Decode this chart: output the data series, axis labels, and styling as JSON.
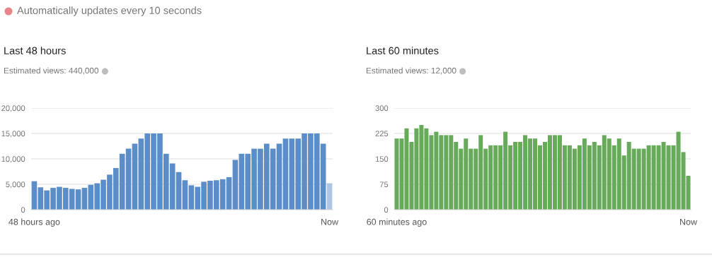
{
  "chart_data": [
    {
      "type": "bar",
      "title": "Last 48 hours",
      "subtitle": "Estimated views: 440,000",
      "annotations": [
        "Automatically updates every 10 seconds"
      ],
      "categories": [
        "48 hours ago",
        null,
        null,
        null,
        null,
        null,
        null,
        null,
        null,
        null,
        null,
        null,
        null,
        null,
        null,
        null,
        null,
        null,
        null,
        null,
        null,
        null,
        null,
        null,
        null,
        null,
        null,
        null,
        null,
        null,
        null,
        null,
        null,
        null,
        null,
        null,
        null,
        null,
        null,
        null,
        null,
        null,
        null,
        null,
        null,
        null,
        null,
        "Now"
      ],
      "values": [
        5600,
        4400,
        3800,
        4300,
        4500,
        4300,
        4100,
        4000,
        4300,
        4900,
        5200,
        5900,
        6900,
        8200,
        11000,
        12000,
        13000,
        14000,
        15000,
        15000,
        15000,
        11000,
        9100,
        7400,
        5800,
        4800,
        4500,
        5500,
        5700,
        5800,
        6000,
        6400,
        9800,
        11000,
        11000,
        12000,
        12000,
        13000,
        12000,
        13000,
        14000,
        14000,
        14000,
        15000,
        15000,
        15000,
        13000,
        5200
      ],
      "colors": [
        "#5b8ec8",
        "#5b8ec8",
        "#5b8ec8",
        "#5b8ec8",
        "#5b8ec8",
        "#5b8ec8",
        "#5b8ec8",
        "#5b8ec8",
        "#5b8ec8",
        "#5b8ec8",
        "#5b8ec8",
        "#5b8ec8",
        "#5b8ec8",
        "#5b8ec8",
        "#5b8ec8",
        "#5b8ec8",
        "#5b8ec8",
        "#5b8ec8",
        "#5b8ec8",
        "#5b8ec8",
        "#5b8ec8",
        "#5b8ec8",
        "#5b8ec8",
        "#5b8ec8",
        "#5b8ec8",
        "#5b8ec8",
        "#5b8ec8",
        "#5b8ec8",
        "#5b8ec8",
        "#5b8ec8",
        "#5b8ec8",
        "#5b8ec8",
        "#5b8ec8",
        "#5b8ec8",
        "#5b8ec8",
        "#5b8ec8",
        "#5b8ec8",
        "#5b8ec8",
        "#5b8ec8",
        "#5b8ec8",
        "#5b8ec8",
        "#5b8ec8",
        "#5b8ec8",
        "#5b8ec8",
        "#5b8ec8",
        "#5b8ec8",
        "#5b8ec8",
        "#adc6e6"
      ],
      "ylim": [
        0,
        20000
      ],
      "yticks": [
        0,
        {
          "value": 5000,
          "label": "5,000"
        },
        {
          "value": 10000,
          "label": "10,000"
        },
        {
          "value": 15000,
          "label": "15,000"
        },
        {
          "value": 20000,
          "label": "20,000"
        }
      ],
      "grid": "y"
    },
    {
      "type": "bar",
      "title": "Last 60 minutes",
      "subtitle": "Estimated views: 12,000",
      "categories": [
        "60 minutes ago",
        null,
        null,
        null,
        null,
        null,
        null,
        null,
        null,
        null,
        null,
        null,
        null,
        null,
        null,
        null,
        null,
        null,
        null,
        null,
        null,
        null,
        null,
        null,
        null,
        null,
        null,
        null,
        null,
        null,
        null,
        null,
        null,
        null,
        null,
        null,
        null,
        null,
        null,
        null,
        null,
        null,
        null,
        null,
        null,
        null,
        null,
        null,
        null,
        null,
        null,
        null,
        null,
        null,
        null,
        null,
        null,
        null,
        null,
        "Now"
      ],
      "values": [
        210,
        210,
        240,
        200,
        240,
        250,
        240,
        220,
        230,
        220,
        220,
        220,
        200,
        180,
        210,
        180,
        180,
        220,
        180,
        190,
        190,
        190,
        230,
        190,
        200,
        200,
        220,
        210,
        210,
        190,
        200,
        220,
        220,
        220,
        190,
        190,
        180,
        190,
        210,
        190,
        200,
        190,
        220,
        210,
        190,
        210,
        160,
        200,
        180,
        180,
        180,
        190,
        190,
        190,
        200,
        190,
        190,
        230,
        170,
        100
      ],
      "color": "#67ab5a",
      "ylim": [
        0,
        300
      ],
      "yticks": [
        0,
        75,
        150,
        225,
        300
      ],
      "grid": "y"
    }
  ]
}
